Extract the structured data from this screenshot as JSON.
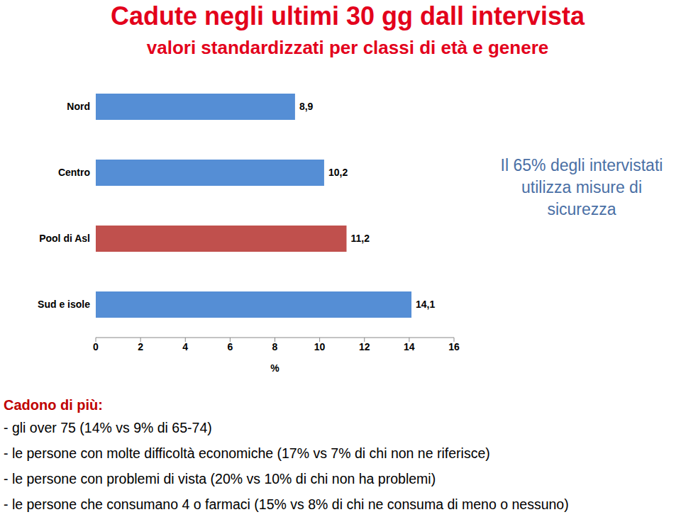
{
  "chart_data": {
    "type": "bar",
    "title": "Cadute negli ultimi 30 gg dall intervista",
    "subtitle": "valori standardizzati per classi di età e genere",
    "orientation": "horizontal",
    "categories": [
      "Nord",
      "Centro",
      "Pool di Asl",
      "Sud e isole"
    ],
    "values": [
      8.9,
      10.2,
      11.2,
      14.1
    ],
    "value_labels": [
      "8,9",
      "10,2",
      "11,2",
      "14,1"
    ],
    "colors": [
      "#558ED5",
      "#558ED5",
      "#C0504D",
      "#558ED5"
    ],
    "data_labels": true,
    "grid": false,
    "xlim": [
      0,
      16
    ],
    "xticks": [
      0,
      2,
      4,
      6,
      8,
      10,
      12,
      14,
      16
    ],
    "xlabel": "%",
    "annotation": "Il 65% degli intervistati utilizza misure di sicurezza",
    "notes": {
      "heading": "Cadono di più:",
      "items": [
        "- gli over 75 (14% vs 9% di 65-74)",
        "- le persone con molte difficoltà economiche (17% vs 7% di chi non ne riferisce)",
        "- le persone con problemi di vista (20% vs 10% di chi non ha problemi)",
        "- le persone che consumano 4 o farmaci (15% vs 8% di chi ne consuma di meno o nessuno)"
      ]
    }
  }
}
